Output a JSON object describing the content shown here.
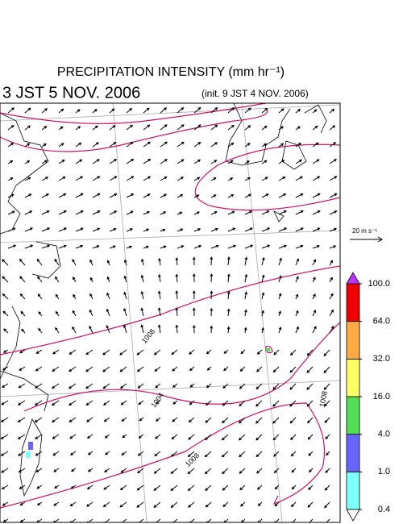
{
  "header": {
    "title": "PRECIPITATION INTENSITY (mm hr⁻¹)",
    "valid_time": "3 JST 5 NOV. 2006",
    "init_time": "(init. 9 JST 4 NOV. 2006)"
  },
  "reference_vector": {
    "label": "20 m s⁻¹"
  },
  "contour_labels": [
    "1008",
    "1004",
    "1008",
    "1008"
  ],
  "colorbar": {
    "levels": [
      0.4,
      {
        "value": 1,
        "label": "1.0"
      },
      {
        "value": 4,
        "label": "4.0"
      },
      {
        "value": 16,
        "label": "16.0"
      },
      {
        "value": 32,
        "label": "32.0"
      },
      {
        "value": 64,
        "label": "64.0"
      },
      {
        "value": 100,
        "label": "100.0"
      }
    ],
    "colors": [
      "#80ffff",
      "#6666ff",
      "#55dd55",
      "#ffff66",
      "#ffaa44",
      "#ee0000"
    ],
    "over_color": "#bb33ff",
    "under_color": "#ffffff"
  }
}
